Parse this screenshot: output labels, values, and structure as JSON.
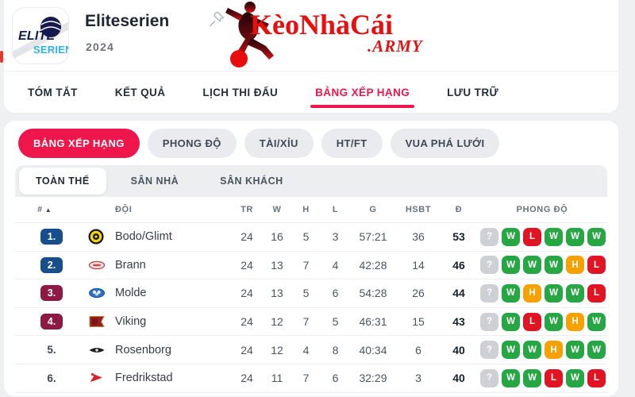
{
  "header": {
    "league_logo_line1": "ELITE",
    "league_logo_line2": "SERIEN",
    "title": "Eliteserien",
    "season": "2024",
    "brand_text": "KèoNhàCái",
    "brand_suffix": ".ARMY"
  },
  "nav_tabs": [
    {
      "label": "TÓM TẮT",
      "active": false
    },
    {
      "label": "KẾT QUẢ",
      "active": false
    },
    {
      "label": "LỊCH THI ĐẤU",
      "active": false
    },
    {
      "label": "BẢNG XẾP HẠNG",
      "active": true
    },
    {
      "label": "LƯU TRỮ",
      "active": false
    }
  ],
  "filter_pills": [
    {
      "label": "BẢNG XẾP HẠNG",
      "active": true
    },
    {
      "label": "PHONG ĐỘ",
      "active": false
    },
    {
      "label": "TÀI/XỈU",
      "active": false
    },
    {
      "label": "HT/FT",
      "active": false
    },
    {
      "label": "VUA PHÁ LƯỚI",
      "active": false
    }
  ],
  "scope_tabs": [
    {
      "label": "TOÀN THỂ",
      "active": true
    },
    {
      "label": "SÂN NHÀ",
      "active": false
    },
    {
      "label": "SÂN KHÁCH",
      "active": false
    }
  ],
  "table": {
    "headers": {
      "pos": "#",
      "sort": "▲",
      "team": "ĐỘI",
      "tr": "TR",
      "w": "W",
      "h": "H",
      "l": "L",
      "g": "G",
      "hsbt": "HSBT",
      "d": "Đ",
      "form": "PHONG ĐỘ"
    },
    "rows": [
      {
        "pos": "1.",
        "badge": "navy",
        "team": "Bodo/Glimt",
        "logo": "bodo-glimt",
        "tr": "24",
        "w": "16",
        "h": "5",
        "l": "3",
        "g": "57:21",
        "hsbt": "36",
        "d": "53",
        "form": [
          "?",
          "W",
          "L",
          "W",
          "W",
          "W"
        ]
      },
      {
        "pos": "2.",
        "badge": "navy",
        "team": "Brann",
        "logo": "brann",
        "tr": "24",
        "w": "13",
        "h": "7",
        "l": "4",
        "g": "42:28",
        "hsbt": "14",
        "d": "46",
        "form": [
          "?",
          "W",
          "W",
          "W",
          "H",
          "L"
        ]
      },
      {
        "pos": "3.",
        "badge": "maroon",
        "team": "Molde",
        "logo": "molde",
        "tr": "24",
        "w": "13",
        "h": "5",
        "l": "6",
        "g": "54:28",
        "hsbt": "26",
        "d": "44",
        "form": [
          "?",
          "W",
          "H",
          "W",
          "W",
          "L"
        ]
      },
      {
        "pos": "4.",
        "badge": "maroon",
        "team": "Viking",
        "logo": "viking",
        "tr": "24",
        "w": "12",
        "h": "7",
        "l": "5",
        "g": "46:31",
        "hsbt": "15",
        "d": "43",
        "form": [
          "?",
          "W",
          "L",
          "W",
          "H",
          "W"
        ]
      },
      {
        "pos": "5.",
        "badge": "none",
        "team": "Rosenborg",
        "logo": "rosenborg",
        "tr": "24",
        "w": "12",
        "h": "4",
        "l": "8",
        "g": "40:34",
        "hsbt": "6",
        "d": "40",
        "form": [
          "?",
          "W",
          "W",
          "H",
          "W",
          "W"
        ]
      },
      {
        "pos": "6.",
        "badge": "none",
        "team": "Fredrikstad",
        "logo": "fredrikstad",
        "tr": "24",
        "w": "11",
        "h": "7",
        "l": "6",
        "g": "32:29",
        "hsbt": "3",
        "d": "40",
        "form": [
          "?",
          "W",
          "W",
          "L",
          "W",
          "L"
        ]
      }
    ]
  },
  "colors": {
    "accent": "#ef164b",
    "navy_badge": "#164f8c",
    "maroon_badge": "#8e1a43",
    "form_win": "#27a744",
    "form_loss": "#e01422",
    "form_draw": "#f6a100",
    "form_unknown": "#cdd1d5",
    "brand_red": "#e90f0f"
  }
}
